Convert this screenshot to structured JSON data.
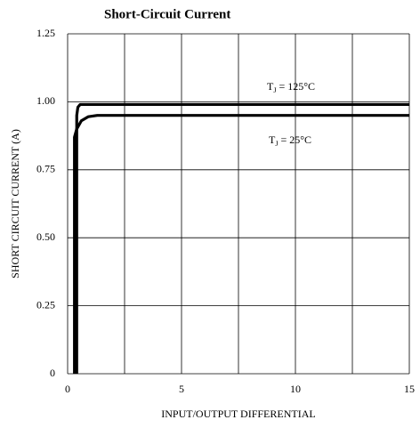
{
  "chart_data": {
    "type": "line",
    "title": "Short-Circuit Current",
    "xlabel": "INPUT/OUTPUT DIFFERENTIAL",
    "ylabel": "SHORT CIRCUIT CURRENT (A)",
    "xlim": [
      0,
      15
    ],
    "xticks": [
      0,
      5,
      10,
      15
    ],
    "xminor": [
      2.5,
      7.5,
      12.5
    ],
    "ylim": [
      0,
      1.25
    ],
    "yticks": [
      0,
      0.25,
      {
        "value": 0.5,
        "label": "0.50"
      },
      0.75,
      {
        "value": 1,
        "label": "1.00"
      },
      1.25
    ],
    "grid": true,
    "series": [
      {
        "label": [
          "T",
          "J",
          " = 125°C"
        ],
        "color": "#000000",
        "x": [
          0.4,
          0.4,
          0.45,
          0.55,
          0.8,
          15
        ],
        "values": [
          0,
          0.95,
          0.98,
          0.99,
          0.99,
          0.99
        ]
      },
      {
        "label": [
          "T",
          "J",
          " = 25°C"
        ],
        "color": "#000000",
        "x": [
          0.3,
          0.3,
          0.4,
          0.6,
          0.9,
          1.3,
          15
        ],
        "values": [
          0,
          0.87,
          0.9,
          0.93,
          0.945,
          0.95,
          0.95
        ]
      }
    ]
  }
}
